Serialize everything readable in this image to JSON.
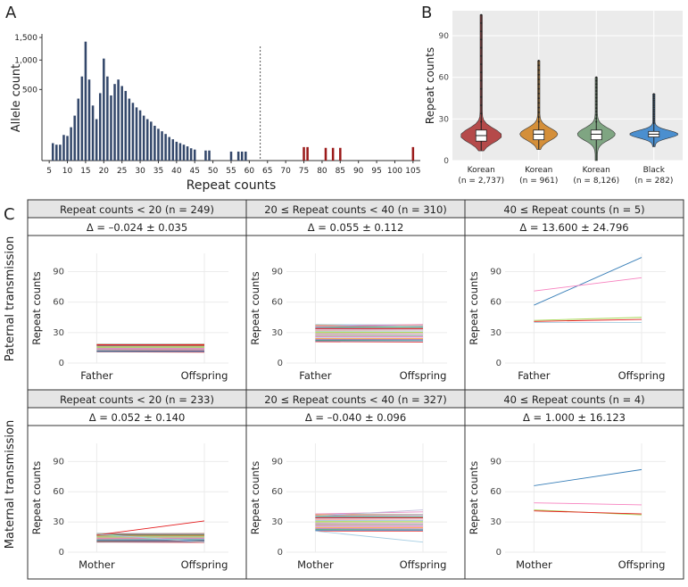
{
  "panel_letters": {
    "a": "A",
    "b": "B",
    "c": "C"
  },
  "colors": {
    "bar": "#34486b",
    "bar_expanded": "#9b1b1b",
    "violin": [
      "#b54a4a",
      "#d48f3a",
      "#7fa582",
      "#4b8fcf"
    ],
    "strip_bg": "#e5e5e5",
    "panel_bg_b": "#ebebeb",
    "line_palette": [
      "#e41a1c",
      "#377eb8",
      "#4daf4a",
      "#984ea3",
      "#ff7f00",
      "#a6cee3",
      "#f781bf",
      "#66c2a5",
      "#fc8d62",
      "#8da0cb",
      "#e78ac3",
      "#a6d854",
      "#b3de69",
      "#80b1d3",
      "#fb8072",
      "#bebada"
    ]
  },
  "chart_data": [
    {
      "id": "A",
      "type": "bar",
      "xlabel": "Repeat counts",
      "ylabel": "Allele count",
      "y_ticks": [
        "500",
        "1,000",
        "1,500"
      ],
      "y_tick_values": [
        500,
        1000,
        1500
      ],
      "x_ticks": [
        "5",
        "10",
        "15",
        "20",
        "25",
        "30",
        "35",
        "40",
        "45",
        "50",
        "55",
        "60",
        "65",
        "70",
        "75",
        "80",
        "85",
        "90",
        "95",
        "100",
        "105"
      ],
      "x_tick_values": [
        5,
        10,
        15,
        20,
        25,
        30,
        35,
        40,
        45,
        50,
        55,
        60,
        65,
        70,
        75,
        80,
        85,
        90,
        95,
        100,
        105
      ],
      "xlim": [
        3,
        107
      ],
      "threshold_x": 63,
      "threshold_label": "",
      "normal_bars": [
        [
          6,
          30
        ],
        [
          7,
          25
        ],
        [
          8,
          25
        ],
        [
          9,
          65
        ],
        [
          10,
          60
        ],
        [
          11,
          110
        ],
        [
          12,
          200
        ],
        [
          13,
          380
        ],
        [
          14,
          700
        ],
        [
          15,
          1400
        ],
        [
          16,
          650
        ],
        [
          17,
          300
        ],
        [
          18,
          170
        ],
        [
          19,
          450
        ],
        [
          20,
          1030
        ],
        [
          21,
          700
        ],
        [
          22,
          420
        ],
        [
          23,
          580
        ],
        [
          24,
          650
        ],
        [
          25,
          550
        ],
        [
          26,
          480
        ],
        [
          27,
          380
        ],
        [
          28,
          330
        ],
        [
          29,
          280
        ],
        [
          30,
          250
        ],
        [
          31,
          200
        ],
        [
          32,
          170
        ],
        [
          33,
          150
        ],
        [
          34,
          120
        ],
        [
          35,
          100
        ],
        [
          36,
          85
        ],
        [
          37,
          70
        ],
        [
          38,
          55
        ],
        [
          39,
          45
        ],
        [
          40,
          35
        ],
        [
          41,
          30
        ],
        [
          42,
          25
        ],
        [
          43,
          20
        ],
        [
          44,
          15
        ],
        [
          45,
          12
        ],
        [
          48,
          10
        ],
        [
          49,
          10
        ],
        [
          55,
          8
        ],
        [
          57,
          8
        ],
        [
          58,
          8
        ],
        [
          59,
          8
        ]
      ],
      "expanded_bars": [
        [
          75,
          18
        ],
        [
          76,
          18
        ],
        [
          81,
          16
        ],
        [
          83,
          16
        ],
        [
          85,
          16
        ],
        [
          105,
          18
        ]
      ]
    },
    {
      "id": "B",
      "type": "violin",
      "ylabel": "Repeat counts",
      "ylim": [
        0,
        108
      ],
      "y_ticks": [
        "0",
        "30",
        "60",
        "90"
      ],
      "y_tick_values": [
        0,
        30,
        60,
        90
      ],
      "groups": [
        {
          "label": "Korean",
          "n": "(n = 2,737)",
          "median": 18,
          "q1": 14,
          "q3": 22,
          "min": 7,
          "max": 105,
          "half_width": 22
        },
        {
          "label": "Korean",
          "n": "(n = 961)",
          "median": 19,
          "q1": 15,
          "q3": 22,
          "min": 8,
          "max": 72,
          "half_width": 20
        },
        {
          "label": "Korean",
          "n": "(n = 8,126)",
          "median": 19,
          "q1": 15,
          "q3": 22,
          "min": 0,
          "max": 60,
          "half_width": 20
        },
        {
          "label": "Black",
          "n": "(n = 282)",
          "median": 19,
          "q1": 17,
          "q3": 21,
          "min": 10,
          "max": 48,
          "half_width": 26
        }
      ]
    },
    {
      "id": "C",
      "type": "line",
      "row_labels": [
        "Paternal transmission",
        "Maternal transmission"
      ],
      "ylabel": "Repeat counts",
      "ylim": [
        0,
        108
      ],
      "y_ticks": [
        "0",
        "30",
        "60",
        "90"
      ],
      "y_tick_values": [
        0,
        30,
        60,
        90
      ],
      "panels": [
        {
          "title": "Repeat counts < 20 (n = 249)",
          "delta": "Δ = –0.024 ± 0.035",
          "xlabels": [
            "Father",
            "Offspring"
          ],
          "band": [
            11,
            19
          ],
          "pairs": [
            [
              12,
              12
            ],
            [
              14,
              14
            ],
            [
              16,
              16
            ],
            [
              18,
              18
            ]
          ]
        },
        {
          "title": "20 ≤ Repeat counts < 40 (n = 310)",
          "delta": "Δ = 0.055 ± 0.112",
          "xlabels": [
            "Father",
            "Offspring"
          ],
          "band": [
            21,
            38
          ],
          "pairs": [
            [
              22,
              22
            ],
            [
              26,
              26
            ],
            [
              30,
              30
            ],
            [
              34,
              34
            ],
            [
              38,
              36
            ],
            [
              36,
              38
            ]
          ]
        },
        {
          "title": "40 ≤ Repeat counts (n = 5)",
          "delta": "Δ = 13.600 ± 24.796",
          "xlabels": [
            "Father",
            "Offspring"
          ],
          "band": null,
          "pairs": [
            [
              57,
              104
            ],
            [
              71,
              84
            ],
            [
              42,
              45
            ],
            [
              41,
              43
            ],
            [
              40,
              40
            ]
          ]
        },
        {
          "title": "Repeat counts < 20 (n = 233)",
          "delta": "Δ = 0.052 ± 0.140",
          "xlabels": [
            "Mother",
            "Offspring"
          ],
          "band": [
            10,
            19
          ],
          "pairs": [
            [
              12,
              12
            ],
            [
              14,
              14
            ],
            [
              16,
              16
            ],
            [
              17,
              31
            ],
            [
              18,
              10
            ]
          ]
        },
        {
          "title": "20 ≤ Repeat counts < 40 (n = 327)",
          "delta": "Δ = –0.040 ± 0.096",
          "xlabels": [
            "Mother",
            "Offspring"
          ],
          "band": [
            21,
            38
          ],
          "pairs": [
            [
              22,
              22
            ],
            [
              26,
              26
            ],
            [
              30,
              30
            ],
            [
              34,
              34
            ],
            [
              21,
              10
            ],
            [
              38,
              40
            ],
            [
              36,
              42
            ]
          ]
        },
        {
          "title": "40 ≤ Repeat counts (n = 4)",
          "delta": "Δ = 1.000 ± 16.123",
          "xlabels": [
            "Mother",
            "Offspring"
          ],
          "band": null,
          "pairs": [
            [
              66,
              82
            ],
            [
              49,
              47
            ],
            [
              42,
              37
            ],
            [
              41,
              38
            ]
          ]
        }
      ]
    }
  ]
}
